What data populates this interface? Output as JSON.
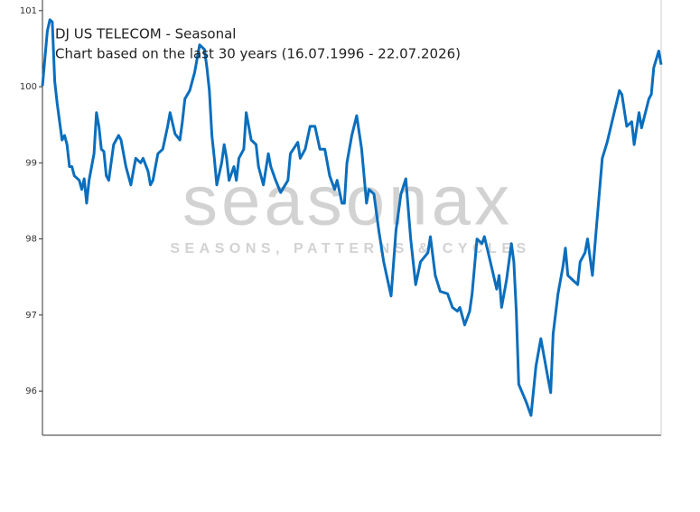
{
  "chart_data": {
    "type": "line",
    "title": "DJ US TELECOM - Seasonal",
    "subtitle": "Chart based on the last 30 years (16.07.1996 - 22.07.2026)",
    "watermark": "seasonax",
    "watermark_tagline": "SEASONS, PATTERNS & CYCLES",
    "xlim": [
      0,
      252
    ],
    "ylim": [
      95.42,
      101.14
    ],
    "yticks": [
      96,
      97,
      98,
      99,
      100,
      101
    ],
    "grid": false,
    "series": [
      {
        "name": "DJ US TELECOM",
        "color": "#0a6ebd",
        "x": [
          0,
          2,
          3,
          4,
          5,
          6,
          7,
          8,
          9,
          10,
          11,
          12,
          13,
          15,
          16,
          17,
          18,
          19,
          21,
          22,
          23,
          24,
          25,
          26,
          27,
          29,
          31,
          32,
          34,
          36,
          37,
          38,
          40,
          41,
          43,
          44,
          45,
          47,
          49,
          51,
          52,
          54,
          56,
          57,
          58,
          60,
          62,
          64,
          66,
          67,
          68,
          69,
          70,
          71,
          73,
          74,
          75,
          76,
          78,
          79,
          80,
          82,
          83,
          85,
          87,
          88,
          90,
          92,
          93,
          95,
          97,
          100,
          101,
          104,
          105,
          107,
          109,
          111,
          113,
          115,
          117,
          119,
          120,
          122,
          123,
          124,
          126,
          128,
          130,
          132,
          133,
          135,
          137,
          139,
          142,
          144,
          146,
          148,
          150,
          152,
          154,
          157,
          158,
          160,
          162,
          165,
          167,
          169,
          170,
          172,
          174,
          175,
          177,
          179,
          180,
          182,
          185,
          186,
          187,
          189,
          191,
          192,
          193,
          194,
          197,
          199,
          201,
          203,
          206,
          207,
          208,
          210,
          212,
          213,
          214,
          216,
          218,
          219,
          221,
          222,
          224,
          226,
          228,
          230,
          232,
          235,
          236,
          238,
          240,
          241,
          243,
          244,
          247,
          248,
          249,
          251,
          252
        ],
        "values": [
          100.01,
          100.73,
          100.88,
          100.85,
          100.07,
          99.78,
          99.54,
          99.3,
          99.36,
          99.24,
          98.95,
          98.95,
          98.83,
          98.77,
          98.65,
          98.79,
          98.47,
          98.77,
          99.12,
          99.66,
          99.48,
          99.18,
          99.15,
          98.83,
          98.77,
          99.24,
          99.36,
          99.3,
          98.95,
          98.71,
          98.89,
          99.06,
          99.0,
          99.06,
          98.89,
          98.71,
          98.77,
          99.12,
          99.18,
          99.48,
          99.66,
          99.38,
          99.3,
          99.54,
          99.84,
          99.95,
          100.19,
          100.55,
          100.49,
          100.25,
          99.95,
          99.36,
          99.06,
          98.71,
          99.0,
          99.24,
          99.06,
          98.77,
          98.95,
          98.77,
          99.06,
          99.18,
          99.66,
          99.3,
          99.24,
          98.95,
          98.71,
          99.12,
          98.95,
          98.77,
          98.61,
          98.77,
          99.12,
          99.27,
          99.06,
          99.18,
          99.48,
          99.48,
          99.18,
          99.18,
          98.83,
          98.65,
          98.77,
          98.47,
          98.47,
          99.0,
          99.36,
          99.62,
          99.18,
          98.47,
          98.65,
          98.59,
          98.11,
          97.7,
          97.25,
          98.11,
          98.59,
          98.79,
          98.0,
          97.4,
          97.7,
          97.82,
          98.03,
          97.52,
          97.31,
          97.28,
          97.1,
          97.05,
          97.1,
          96.87,
          97.05,
          97.28,
          98.0,
          97.94,
          98.03,
          97.76,
          97.34,
          97.52,
          97.1,
          97.46,
          97.94,
          97.7,
          97.05,
          96.09,
          95.86,
          95.68,
          96.33,
          96.69,
          96.15,
          95.98,
          96.75,
          97.28,
          97.64,
          97.88,
          97.52,
          97.46,
          97.4,
          97.7,
          97.82,
          98.0,
          97.52,
          98.29,
          99.06,
          99.27,
          99.54,
          99.95,
          99.9,
          99.48,
          99.54,
          99.24,
          99.66,
          99.46,
          99.84,
          99.9,
          100.25,
          100.47,
          100.29
        ]
      }
    ]
  }
}
